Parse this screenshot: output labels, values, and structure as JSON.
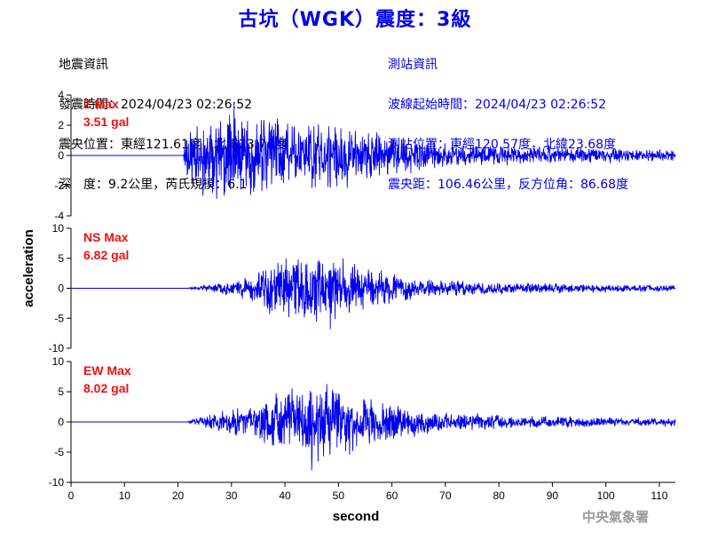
{
  "header": {
    "title": "古坑（WGK）震度：3級"
  },
  "earthquake_info": {
    "heading": "地震資訊",
    "origin_time": "發震時間：2024/04/23 02:26:52",
    "epicenter": "震央位置：東經121.61度，北緯23.74度",
    "depth_magnitude": "深　度：9.2公里，芮氏規模：6.1"
  },
  "station_info": {
    "heading": "測站資訊",
    "wave_start": "波線起始時間：2024/04/23 02:26:52",
    "station_location": "測站位置：東經120.57度，北緯23.68度",
    "distance_azimuth": "震央距：106.46公里，反方位角：86.68度"
  },
  "footer": {
    "agency": "中央氣象署"
  },
  "chart_data": {
    "type": "line",
    "xlabel": "second",
    "ylabel": "acceleration",
    "xlim": [
      0,
      113
    ],
    "x_ticks": [
      0,
      10,
      20,
      30,
      40,
      50,
      60,
      70,
      80,
      90,
      100,
      110
    ],
    "line_color": "#0000ee",
    "label_color": "#ee1111",
    "series": [
      {
        "name": "Z Max",
        "max_label": "3.51 gal",
        "ylim": [
          -4,
          4
        ],
        "y_ticks": [
          -4,
          -2,
          0,
          2,
          4
        ],
        "peak": 3.51,
        "onset_s": 21,
        "envelope": [
          [
            21,
            0.3
          ],
          [
            22,
            1.3
          ],
          [
            25,
            1.6
          ],
          [
            28,
            1.8
          ],
          [
            30,
            2.0
          ],
          [
            35,
            1.7
          ],
          [
            40,
            1.6
          ],
          [
            45,
            1.5
          ],
          [
            50,
            1.35
          ],
          [
            55,
            1.05
          ],
          [
            60,
            0.9
          ],
          [
            65,
            0.7
          ],
          [
            70,
            0.55
          ],
          [
            75,
            0.48
          ],
          [
            80,
            0.42
          ],
          [
            90,
            0.38
          ],
          [
            100,
            0.3
          ],
          [
            113,
            0.26
          ]
        ],
        "peak_time_s": 30.5,
        "seed": 11
      },
      {
        "name": "NS Max",
        "max_label": "6.82 gal",
        "ylim": [
          -10,
          10
        ],
        "y_ticks": [
          -10,
          -5,
          0,
          5,
          10
        ],
        "peak": 6.82,
        "onset_s": 22,
        "envelope": [
          [
            22,
            0.1
          ],
          [
            25,
            0.35
          ],
          [
            30,
            0.8
          ],
          [
            35,
            1.8
          ],
          [
            38,
            3.0
          ],
          [
            42,
            3.6
          ],
          [
            46,
            3.8
          ],
          [
            50,
            3.4
          ],
          [
            55,
            2.4
          ],
          [
            60,
            1.7
          ],
          [
            65,
            1.2
          ],
          [
            70,
            0.9
          ],
          [
            80,
            0.65
          ],
          [
            90,
            0.55
          ],
          [
            100,
            0.45
          ],
          [
            113,
            0.35
          ]
        ],
        "peak_time_s": 48.5,
        "seed": 23
      },
      {
        "name": "EW Max",
        "max_label": "8.02 gal",
        "ylim": [
          -10,
          10
        ],
        "y_ticks": [
          -10,
          -5,
          0,
          5,
          10
        ],
        "peak": 8.02,
        "onset_s": 22,
        "envelope": [
          [
            22,
            0.1
          ],
          [
            25,
            0.5
          ],
          [
            30,
            1.2
          ],
          [
            35,
            1.6
          ],
          [
            40,
            2.6
          ],
          [
            45,
            3.4
          ],
          [
            50,
            3.0
          ],
          [
            55,
            2.2
          ],
          [
            60,
            1.6
          ],
          [
            65,
            1.1
          ],
          [
            70,
            0.85
          ],
          [
            80,
            0.6
          ],
          [
            90,
            0.5
          ],
          [
            100,
            0.4
          ],
          [
            113,
            0.32
          ]
        ],
        "peak_time_s": 45.0,
        "seed": 37
      }
    ]
  }
}
